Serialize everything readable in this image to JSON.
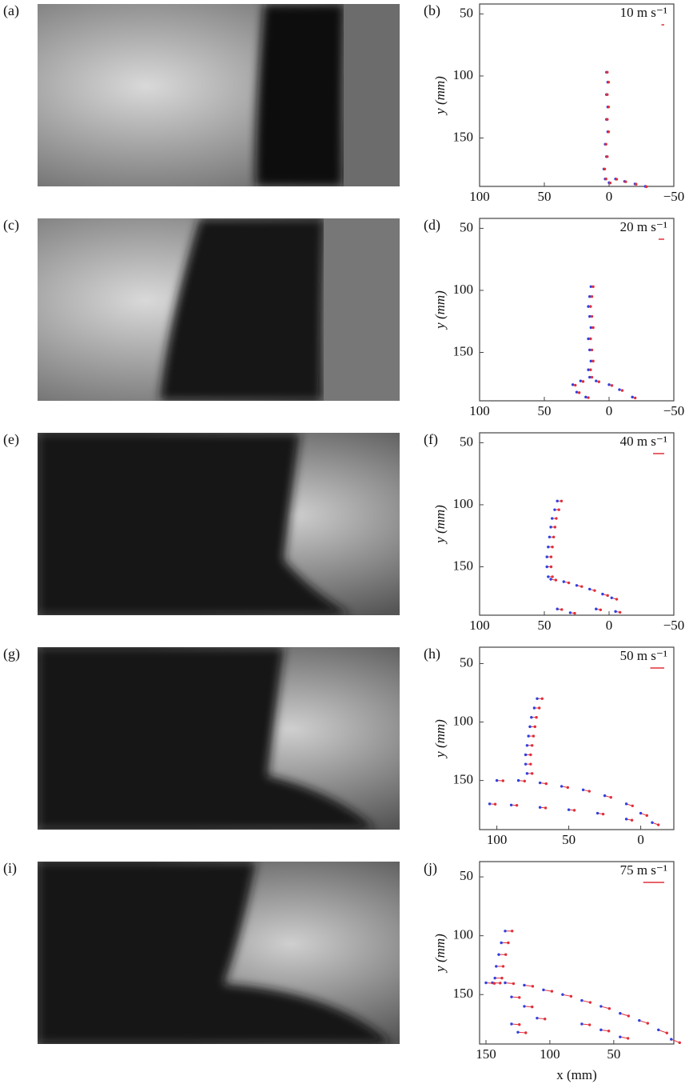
{
  "chart_data": [
    {
      "type": "quiver",
      "image_label": "(a)",
      "panel_label": "(b)",
      "ylabel": "y (mm)",
      "key": {
        "value": 10,
        "label": "10 m s⁻¹"
      },
      "xlim": [
        100,
        -50
      ],
      "ylim": [
        42,
        189
      ],
      "xticks": [
        100,
        50,
        0,
        {
          "value": -50,
          "label": "−50"
        }
      ],
      "yticks": [
        50,
        100,
        150
      ],
      "x": [
        2,
        1,
        2,
        1,
        2,
        1,
        3,
        2,
        4,
        3,
        0,
        -5,
        -12,
        -20,
        -28
      ],
      "y": [
        97,
        105,
        115,
        125,
        135,
        145,
        155,
        165,
        175,
        183,
        186,
        183,
        185,
        187,
        189
      ],
      "u": [
        -3,
        -3,
        -3,
        -3,
        -3,
        -3,
        -3,
        -3,
        -3,
        -3,
        -4,
        -4,
        -4,
        -4,
        -4
      ],
      "v": [
        0,
        0,
        0,
        0,
        0,
        0,
        0,
        0,
        0,
        0,
        1,
        1,
        1,
        1,
        1
      ]
    },
    {
      "type": "quiver",
      "image_label": "(c)",
      "panel_label": "(d)",
      "ylabel": "y (mm)",
      "key": {
        "value": 20,
        "label": "20 m s⁻¹"
      },
      "xlim": [
        100,
        -50
      ],
      "ylim": [
        42,
        189
      ],
      "xticks": [
        100,
        50,
        0,
        {
          "value": -50,
          "label": "−50"
        }
      ],
      "yticks": [
        50,
        100,
        150
      ],
      "x": [
        14,
        15,
        16,
        15,
        14,
        16,
        15,
        14,
        16,
        15,
        22,
        28,
        10,
        0,
        -8,
        -18,
        25,
        18
      ],
      "y": [
        97,
        105,
        113,
        121,
        130,
        139,
        148,
        157,
        164,
        170,
        173,
        176,
        173,
        176,
        180,
        186,
        182,
        186
      ],
      "u": [
        -8,
        -8,
        -8,
        -8,
        -8,
        -8,
        -8,
        -8,
        -8,
        -8,
        -9,
        -9,
        -10,
        -10,
        -10,
        -10,
        -9,
        -9
      ],
      "v": [
        0,
        0,
        0,
        0,
        0,
        0,
        0,
        0,
        0,
        0,
        2,
        2,
        3,
        3,
        3,
        3,
        2,
        2
      ]
    },
    {
      "type": "quiver",
      "image_label": "(e)",
      "panel_label": "(f)",
      "ylabel": "y (mm)",
      "key": {
        "value": 40,
        "label": "40 m s⁻¹"
      },
      "xlim": [
        100,
        -50
      ],
      "ylim": [
        42,
        189
      ],
      "xticks": [
        100,
        50,
        0,
        {
          "value": -50,
          "label": "−50"
        }
      ],
      "yticks": [
        50,
        100,
        150
      ],
      "x": [
        40,
        42,
        44,
        45,
        46,
        47,
        48,
        48,
        47,
        45,
        35,
        25,
        15,
        5,
        -2,
        40,
        30,
        10,
        -5
      ],
      "y": [
        97,
        104,
        111,
        118,
        126,
        134,
        142,
        150,
        158,
        160,
        162,
        165,
        168,
        172,
        175,
        184,
        187,
        184,
        186
      ],
      "u": [
        -15,
        -15,
        -15,
        -15,
        -15,
        -15,
        -15,
        -15,
        -15,
        -18,
        -18,
        -18,
        -18,
        -18,
        -18,
        -16,
        -16,
        -16,
        -16
      ],
      "v": [
        0,
        0,
        0,
        0,
        0,
        0,
        0,
        0,
        0,
        3,
        4,
        4,
        5,
        5,
        5,
        2,
        2,
        3,
        3
      ]
    },
    {
      "type": "quiver",
      "image_label": "(g)",
      "panel_label": "(h)",
      "ylabel": "y (mm)",
      "key": {
        "value": 50,
        "label": "50 m s⁻¹"
      },
      "xlim": [
        112,
        -23
      ],
      "ylim": [
        36,
        192
      ],
      "xticks": [
        100,
        50,
        0
      ],
      "yticks": [
        50,
        100,
        150
      ],
      "x": [
        72,
        74,
        76,
        77,
        78,
        79,
        80,
        80,
        79,
        100,
        85,
        70,
        55,
        40,
        25,
        10,
        0,
        -8,
        105,
        90,
        70,
        50,
        30,
        10
      ],
      "y": [
        80,
        88,
        96,
        104,
        112,
        120,
        128,
        136,
        144,
        150,
        150,
        152,
        155,
        158,
        163,
        170,
        178,
        186,
        170,
        171,
        173,
        175,
        178,
        183
      ],
      "u": [
        -18,
        -18,
        -18,
        -18,
        -18,
        -18,
        -18,
        -18,
        -18,
        -22,
        -22,
        -22,
        -22,
        -22,
        -22,
        -22,
        -22,
        -22,
        -20,
        -20,
        -20,
        -20,
        -20,
        -20
      ],
      "v": [
        0,
        0,
        0,
        0,
        0,
        0,
        0,
        0,
        0,
        1,
        2,
        3,
        4,
        5,
        6,
        7,
        8,
        8,
        1,
        1,
        2,
        2,
        3,
        4
      ]
    },
    {
      "type": "quiver",
      "image_label": "(i)",
      "panel_label": "(j)",
      "ylabel": "y (mm)",
      "xlabel": "x (mm)",
      "key": {
        "value": 75,
        "label": "75 m s⁻¹"
      },
      "xlim": [
        155,
        3
      ],
      "ylim": [
        37,
        192
      ],
      "xticks": [
        150,
        100,
        50
      ],
      "yticks": [
        50,
        100,
        150
      ],
      "x": [
        135,
        138,
        140,
        142,
        143,
        145,
        150,
        135,
        120,
        105,
        90,
        75,
        60,
        45,
        30,
        15,
        5,
        130,
        120,
        110,
        130,
        125,
        75,
        60,
        45
      ],
      "y": [
        96,
        106,
        116,
        126,
        136,
        140,
        140,
        140,
        142,
        146,
        150,
        155,
        160,
        166,
        172,
        180,
        188,
        152,
        160,
        170,
        175,
        182,
        175,
        180,
        186
      ],
      "u": [
        -25,
        -25,
        -25,
        -25,
        -25,
        -28,
        -30,
        -30,
        -30,
        -30,
        -30,
        -30,
        -30,
        -30,
        -30,
        -30,
        -30,
        -28,
        -28,
        -28,
        -28,
        -28,
        -28,
        -28,
        -28
      ],
      "v": [
        0,
        0,
        0,
        0,
        0,
        1,
        2,
        3,
        4,
        5,
        6,
        7,
        8,
        9,
        10,
        11,
        12,
        2,
        2,
        3,
        2,
        2,
        3,
        4,
        5
      ]
    }
  ]
}
